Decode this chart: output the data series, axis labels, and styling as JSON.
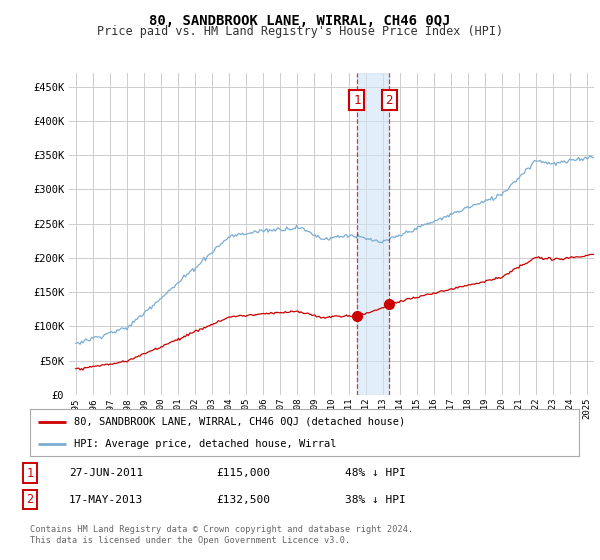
{
  "title": "80, SANDBROOK LANE, WIRRAL, CH46 0QJ",
  "subtitle": "Price paid vs. HM Land Registry's House Price Index (HPI)",
  "title_fontsize": 10,
  "subtitle_fontsize": 8.5,
  "background_color": "#ffffff",
  "grid_color": "#cccccc",
  "plot_bg": "#ffffff",
  "hpi_color": "#7aadd4",
  "price_color": "#cc0000",
  "ylabel_values": [
    0,
    50000,
    100000,
    150000,
    200000,
    250000,
    300000,
    350000,
    400000,
    450000
  ],
  "ylabel_labels": [
    "£0",
    "£50K",
    "£100K",
    "£150K",
    "£200K",
    "£250K",
    "£300K",
    "£350K",
    "£400K",
    "£450K"
  ],
  "ylim": [
    0,
    470000
  ],
  "transactions": [
    {
      "date_num": 2011.49,
      "price": 115000,
      "label": "1"
    },
    {
      "date_num": 2013.38,
      "price": 132500,
      "label": "2"
    }
  ],
  "annotation1": {
    "label": "1",
    "date": "27-JUN-2011",
    "price": "£115,000",
    "pct": "48% ↓ HPI"
  },
  "annotation2": {
    "label": "2",
    "date": "17-MAY-2013",
    "price": "£132,500",
    "pct": "38% ↓ HPI"
  },
  "legend_line1": "80, SANDBROOK LANE, WIRRAL, CH46 0QJ (detached house)",
  "legend_line2": "HPI: Average price, detached house, Wirral",
  "footer": "Contains HM Land Registry data © Crown copyright and database right 2024.\nThis data is licensed under the Open Government Licence v3.0.",
  "shade_xmin": 2011.49,
  "shade_xmax": 2013.38,
  "xlim_left": 1994.6,
  "xlim_right": 2025.4
}
